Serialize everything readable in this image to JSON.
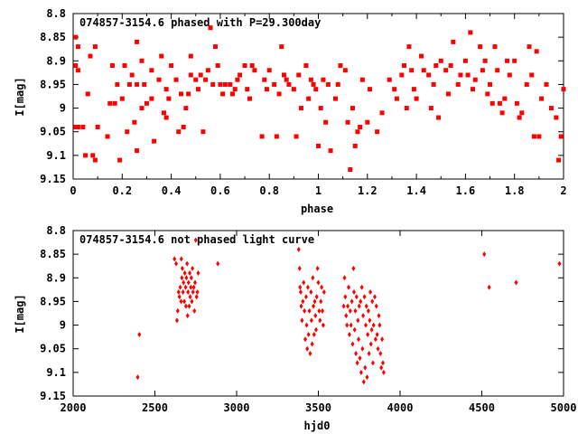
{
  "colors": {
    "points": "#ff0000",
    "axes": "#000000",
    "background": "#ffffff"
  },
  "chart_data": [
    {
      "type": "scatter",
      "title": "074857-3154.6 phased with P=29.300day",
      "xlabel": "phase",
      "ylabel": "I[mag]",
      "xlim": [
        0,
        2
      ],
      "ylim": [
        8.8,
        9.15
      ],
      "y_inverted": true,
      "xticks": [
        0,
        0.2,
        0.4,
        0.6,
        0.8,
        1,
        1.2,
        1.4,
        1.6,
        1.8,
        2
      ],
      "xtick_labels": [
        "0",
        "0.2",
        "0.4",
        "0.6",
        "0.8",
        "1",
        "1.2",
        "1.4",
        "1.6",
        "1.8",
        "2"
      ],
      "yticks": [
        8.8,
        8.85,
        8.9,
        8.95,
        9,
        9.05,
        9.1,
        9.15
      ],
      "ytick_labels": [
        "8.8",
        "8.85",
        "8.9",
        "8.95",
        "9",
        "9.05",
        "9.1",
        "9.15"
      ],
      "marker": "square",
      "points": [
        [
          0.01,
          8.85
        ],
        [
          0.02,
          8.87
        ],
        [
          0.01,
          8.91
        ],
        [
          0.02,
          8.92
        ],
        [
          0.01,
          9.04
        ],
        [
          0.02,
          9.04
        ],
        [
          0.04,
          9.04
        ],
        [
          0.05,
          9.1
        ],
        [
          0.06,
          8.97
        ],
        [
          0.07,
          8.89
        ],
        [
          0.08,
          9.1
        ],
        [
          0.09,
          9.11
        ],
        [
          0.09,
          8.87
        ],
        [
          0.1,
          9.04
        ],
        [
          0.14,
          9.06
        ],
        [
          0.15,
          8.99
        ],
        [
          0.16,
          8.91
        ],
        [
          0.17,
          8.99
        ],
        [
          0.18,
          8.95
        ],
        [
          0.19,
          9.11
        ],
        [
          0.2,
          8.98
        ],
        [
          0.21,
          8.91
        ],
        [
          0.22,
          9.05
        ],
        [
          0.23,
          8.95
        ],
        [
          0.24,
          8.93
        ],
        [
          0.25,
          9.03
        ],
        [
          0.26,
          9.09
        ],
        [
          0.26,
          8.95
        ],
        [
          0.26,
          8.86
        ],
        [
          0.28,
          8.9
        ],
        [
          0.28,
          9.0
        ],
        [
          0.29,
          8.95
        ],
        [
          0.3,
          8.99
        ],
        [
          0.32,
          8.98
        ],
        [
          0.32,
          8.92
        ],
        [
          0.33,
          9.07
        ],
        [
          0.35,
          8.94
        ],
        [
          0.36,
          8.89
        ],
        [
          0.37,
          9.01
        ],
        [
          0.38,
          8.96
        ],
        [
          0.38,
          9.02
        ],
        [
          0.39,
          8.98
        ],
        [
          0.4,
          8.91
        ],
        [
          0.42,
          8.94
        ],
        [
          0.43,
          9.05
        ],
        [
          0.44,
          8.97
        ],
        [
          0.45,
          9.04
        ],
        [
          0.46,
          9.0
        ],
        [
          0.47,
          8.97
        ],
        [
          0.48,
          8.89
        ],
        [
          0.48,
          8.93
        ],
        [
          0.5,
          8.94
        ],
        [
          0.51,
          8.96
        ],
        [
          0.52,
          8.93
        ],
        [
          0.53,
          9.05
        ],
        [
          0.54,
          8.94
        ],
        [
          0.55,
          8.92
        ],
        [
          0.56,
          8.83
        ],
        [
          0.57,
          8.95
        ],
        [
          0.58,
          8.87
        ],
        [
          0.59,
          8.91
        ],
        [
          0.6,
          8.95
        ],
        [
          0.61,
          8.97
        ],
        [
          0.62,
          8.95
        ],
        [
          0.64,
          8.95
        ],
        [
          0.65,
          8.97
        ],
        [
          0.66,
          8.96
        ],
        [
          0.67,
          8.94
        ],
        [
          0.68,
          8.93
        ],
        [
          0.7,
          8.91
        ],
        [
          0.71,
          8.96
        ],
        [
          0.72,
          8.98
        ],
        [
          0.73,
          8.91
        ],
        [
          0.74,
          8.92
        ],
        [
          0.77,
          9.06
        ],
        [
          0.78,
          8.94
        ],
        [
          0.79,
          8.96
        ],
        [
          0.8,
          8.92
        ],
        [
          0.82,
          8.95
        ],
        [
          0.83,
          9.06
        ],
        [
          0.84,
          8.97
        ],
        [
          0.85,
          8.87
        ],
        [
          0.86,
          8.93
        ],
        [
          0.87,
          8.94
        ],
        [
          0.88,
          8.95
        ],
        [
          0.9,
          8.96
        ],
        [
          0.91,
          9.06
        ],
        [
          0.92,
          8.93
        ],
        [
          0.93,
          9.0
        ],
        [
          0.95,
          8.91
        ],
        [
          0.96,
          8.98
        ],
        [
          0.97,
          8.94
        ],
        [
          0.98,
          8.95
        ],
        [
          0.99,
          8.96
        ],
        [
          1.0,
          9.08
        ],
        [
          1.01,
          9.0
        ],
        [
          1.02,
          8.94
        ],
        [
          1.03,
          9.03
        ],
        [
          1.04,
          8.95
        ],
        [
          1.05,
          9.09
        ],
        [
          1.07,
          8.98
        ],
        [
          1.08,
          8.95
        ],
        [
          1.09,
          8.91
        ],
        [
          1.11,
          8.92
        ],
        [
          1.12,
          9.03
        ],
        [
          1.13,
          9.13
        ],
        [
          1.14,
          9.0
        ],
        [
          1.15,
          9.08
        ],
        [
          1.16,
          9.05
        ],
        [
          1.17,
          9.04
        ],
        [
          1.18,
          8.94
        ],
        [
          1.2,
          9.03
        ],
        [
          1.21,
          8.96
        ],
        [
          1.24,
          9.05
        ],
        [
          1.26,
          9.01
        ],
        [
          1.29,
          8.94
        ],
        [
          1.31,
          8.96
        ],
        [
          1.32,
          8.98
        ],
        [
          1.34,
          8.93
        ],
        [
          1.35,
          8.91
        ],
        [
          1.36,
          9.0
        ],
        [
          1.37,
          8.87
        ],
        [
          1.38,
          8.92
        ],
        [
          1.39,
          8.96
        ],
        [
          1.4,
          8.98
        ],
        [
          1.42,
          8.89
        ],
        [
          1.43,
          8.92
        ],
        [
          1.45,
          8.93
        ],
        [
          1.46,
          9.0
        ],
        [
          1.47,
          8.95
        ],
        [
          1.48,
          8.91
        ],
        [
          1.49,
          9.02
        ],
        [
          1.5,
          8.9
        ],
        [
          1.52,
          8.92
        ],
        [
          1.53,
          8.97
        ],
        [
          1.54,
          8.91
        ],
        [
          1.55,
          8.86
        ],
        [
          1.57,
          8.95
        ],
        [
          1.58,
          8.93
        ],
        [
          1.6,
          8.9
        ],
        [
          1.61,
          8.93
        ],
        [
          1.62,
          8.84
        ],
        [
          1.63,
          8.96
        ],
        [
          1.64,
          8.94
        ],
        [
          1.66,
          8.87
        ],
        [
          1.67,
          8.92
        ],
        [
          1.68,
          8.9
        ],
        [
          1.69,
          8.97
        ],
        [
          1.7,
          8.95
        ],
        [
          1.71,
          8.99
        ],
        [
          1.72,
          8.87
        ],
        [
          1.73,
          8.92
        ],
        [
          1.74,
          8.99
        ],
        [
          1.75,
          9.01
        ],
        [
          1.76,
          8.98
        ],
        [
          1.77,
          8.9
        ],
        [
          1.78,
          8.93
        ],
        [
          1.8,
          8.9
        ],
        [
          1.81,
          8.99
        ],
        [
          1.82,
          9.02
        ],
        [
          1.83,
          9.01
        ],
        [
          1.85,
          8.95
        ],
        [
          1.86,
          8.87
        ],
        [
          1.87,
          8.93
        ],
        [
          1.88,
          9.06
        ],
        [
          1.89,
          8.88
        ],
        [
          1.9,
          9.06
        ],
        [
          1.91,
          8.98
        ],
        [
          1.93,
          8.95
        ],
        [
          1.95,
          9.0
        ],
        [
          1.97,
          9.02
        ],
        [
          1.98,
          9.11
        ],
        [
          1.99,
          9.06
        ],
        [
          2.0,
          8.96
        ]
      ]
    },
    {
      "type": "scatter",
      "title": "074857-3154.6 not phased light curve",
      "xlabel": "hjd0",
      "ylabel": "I[mag]",
      "xlim": [
        2000,
        5000
      ],
      "ylim": [
        8.8,
        9.15
      ],
      "y_inverted": true,
      "xticks": [
        2000,
        2500,
        3000,
        3500,
        4000,
        4500,
        5000
      ],
      "xtick_labels": [
        "2000",
        "2500",
        "3000",
        "3500",
        "4000",
        "4500",
        "5000"
      ],
      "yticks": [
        8.8,
        8.85,
        8.9,
        8.95,
        9,
        9.05,
        9.1,
        9.15
      ],
      "ytick_labels": [
        "8.8",
        "8.85",
        "8.9",
        "8.95",
        "9",
        "9.05",
        "9.1",
        "9.15"
      ],
      "marker": "diamond",
      "points": [
        [
          2395,
          9.11
        ],
        [
          2405,
          9.02
        ],
        [
          2620,
          8.86
        ],
        [
          2630,
          8.87
        ],
        [
          2635,
          8.99
        ],
        [
          2640,
          8.97
        ],
        [
          2645,
          8.93
        ],
        [
          2650,
          8.94
        ],
        [
          2655,
          8.92
        ],
        [
          2660,
          8.95
        ],
        [
          2662,
          8.86
        ],
        [
          2665,
          8.9
        ],
        [
          2668,
          8.88
        ],
        [
          2672,
          8.93
        ],
        [
          2675,
          8.91
        ],
        [
          2680,
          8.95
        ],
        [
          2683,
          8.89
        ],
        [
          2688,
          8.92
        ],
        [
          2690,
          8.96
        ],
        [
          2693,
          8.9
        ],
        [
          2697,
          8.87
        ],
        [
          2700,
          8.98
        ],
        [
          2703,
          8.93
        ],
        [
          2706,
          8.91
        ],
        [
          2710,
          8.96
        ],
        [
          2713,
          8.89
        ],
        [
          2716,
          8.94
        ],
        [
          2720,
          8.92
        ],
        [
          2723,
          8.9
        ],
        [
          2726,
          8.95
        ],
        [
          2730,
          8.88
        ],
        [
          2733,
          8.93
        ],
        [
          2738,
          8.92
        ],
        [
          2742,
          8.97
        ],
        [
          2746,
          8.91
        ],
        [
          2750,
          8.82
        ],
        [
          2755,
          8.94
        ],
        [
          2760,
          8.93
        ],
        [
          2765,
          8.89
        ],
        [
          2885,
          8.87
        ],
        [
          3380,
          8.84
        ],
        [
          3385,
          8.88
        ],
        [
          3388,
          8.92
        ],
        [
          3392,
          8.93
        ],
        [
          3395,
          8.96
        ],
        [
          3400,
          8.99
        ],
        [
          3405,
          8.95
        ],
        [
          3410,
          8.91
        ],
        [
          3415,
          8.97
        ],
        [
          3420,
          9.03
        ],
        [
          3425,
          8.94
        ],
        [
          3428,
          9.0
        ],
        [
          3432,
          9.05
        ],
        [
          3436,
          8.92
        ],
        [
          3440,
          9.02
        ],
        [
          3445,
          8.97
        ],
        [
          3450,
          9.06
        ],
        [
          3455,
          8.93
        ],
        [
          3458,
          8.99
        ],
        [
          3462,
          9.04
        ],
        [
          3466,
          8.9
        ],
        [
          3470,
          8.96
        ],
        [
          3474,
          9.02
        ],
        [
          3478,
          8.95
        ],
        [
          3482,
          8.98
        ],
        [
          3486,
          9.01
        ],
        [
          3490,
          8.94
        ],
        [
          3495,
          8.88
        ],
        [
          3500,
          8.91
        ],
        [
          3505,
          8.97
        ],
        [
          3510,
          8.99
        ],
        [
          3515,
          8.95
        ],
        [
          3520,
          8.92
        ],
        [
          3525,
          8.97
        ],
        [
          3530,
          9.0
        ],
        [
          3535,
          8.93
        ],
        [
          3655,
          8.96
        ],
        [
          3660,
          8.9
        ],
        [
          3665,
          8.94
        ],
        [
          3670,
          8.98
        ],
        [
          3675,
          9.0
        ],
        [
          3680,
          8.96
        ],
        [
          3685,
          8.92
        ],
        [
          3690,
          9.02
        ],
        [
          3695,
          8.97
        ],
        [
          3700,
          9.0
        ],
        [
          3705,
          8.95
        ],
        [
          3710,
          9.04
        ],
        [
          3715,
          8.88
        ],
        [
          3718,
          8.93
        ],
        [
          3722,
          9.01
        ],
        [
          3726,
          8.97
        ],
        [
          3730,
          9.06
        ],
        [
          3734,
          8.94
        ],
        [
          3738,
          9.08
        ],
        [
          3742,
          8.99
        ],
        [
          3746,
          9.03
        ],
        [
          3750,
          8.96
        ],
        [
          3754,
          9.07
        ],
        [
          3758,
          8.95
        ],
        [
          3762,
          9.1
        ],
        [
          3766,
          8.92
        ],
        [
          3770,
          9.05
        ],
        [
          3774,
          8.98
        ],
        [
          3778,
          9.12
        ],
        [
          3782,
          8.94
        ],
        [
          3786,
          9.09
        ],
        [
          3790,
          9.0
        ],
        [
          3794,
          8.96
        ],
        [
          3798,
          9.11
        ],
        [
          3802,
          9.02
        ],
        [
          3806,
          8.97
        ],
        [
          3810,
          9.06
        ],
        [
          3814,
          8.99
        ],
        [
          3818,
          8.93
        ],
        [
          3822,
          9.04
        ],
        [
          3826,
          9.01
        ],
        [
          3830,
          8.95
        ],
        [
          3834,
          9.08
        ],
        [
          3838,
          9.0
        ],
        [
          3845,
          8.94
        ],
        [
          3850,
          9.03
        ],
        [
          3855,
          8.96
        ],
        [
          3860,
          9.02
        ],
        [
          3865,
          9.05
        ],
        [
          3870,
          8.98
        ],
        [
          3875,
          9.0
        ],
        [
          3880,
          9.06
        ],
        [
          3885,
          9.09
        ],
        [
          3890,
          9.03
        ],
        [
          3895,
          9.08
        ],
        [
          3900,
          9.1
        ],
        [
          4515,
          8.85
        ],
        [
          4545,
          8.92
        ],
        [
          4710,
          8.91
        ],
        [
          4975,
          8.87
        ]
      ]
    }
  ]
}
